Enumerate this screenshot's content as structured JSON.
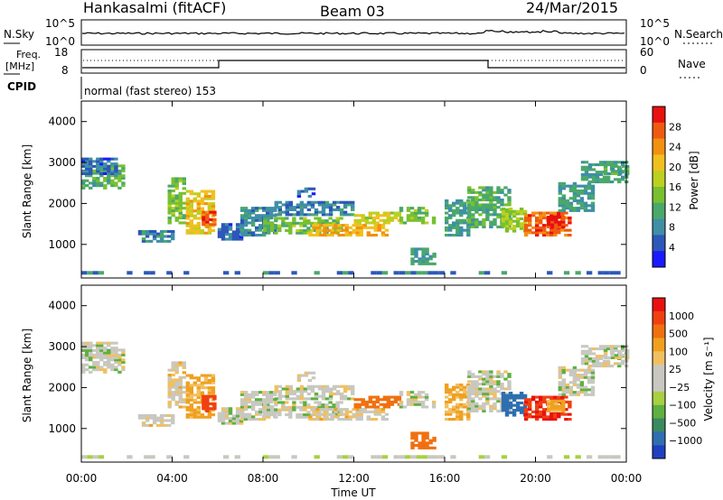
{
  "header": {
    "station": "Hankasalmi (fitACF)",
    "beam": "Beam 03",
    "date": "24/Mar/2015"
  },
  "top_panels": {
    "nsky_label": "N.Sky",
    "nsky_ticks": [
      "10^5",
      "10^0"
    ],
    "nsearch_label": "N.Search",
    "nsearch_ticks": [
      "10^5",
      "10^0"
    ],
    "freq_label_1": "Freq.",
    "freq_label_2": "[MHz]",
    "freq_ticks": [
      "18",
      "8"
    ],
    "nave_label": "Nave",
    "nave_ticks": [
      "60",
      "0"
    ],
    "cpid_label": "CPID",
    "cpid_text": "normal (fast stereo) 153"
  },
  "chart_data": [
    {
      "type": "heatmap",
      "name": "power",
      "ylabel": "Slant Range [km]",
      "ylim": [
        180,
        4500
      ],
      "yticks": [
        "1000",
        "2000",
        "3000",
        "4000"
      ],
      "colorbar_label": "Power [dB]",
      "colorbar_ticks": [
        "4",
        "8",
        "12",
        "16",
        "20",
        "24",
        "28"
      ],
      "colors": [
        "#1a1aff",
        "#2d57b8",
        "#3f8fa6",
        "#4aa86a",
        "#78c030",
        "#bcd020",
        "#f0c020",
        "#f29010",
        "#f05a10",
        "#e81010"
      ]
    },
    {
      "type": "heatmap",
      "name": "velocity",
      "ylabel": "Slant Range [km]",
      "ylim": [
        180,
        4500
      ],
      "yticks": [
        "1000",
        "2000",
        "3000",
        "4000"
      ],
      "colorbar_label": "Velocity [m s⁻¹]",
      "colorbar_ticks": [
        "1000",
        "500",
        "100",
        "25",
        "−25",
        "−100",
        "−500",
        "−1000"
      ],
      "colors": [
        "#2040c0",
        "#2f6fb0",
        "#3a8a60",
        "#5fb040",
        "#a8d040",
        "#c8c8c0",
        "#c8c8c0",
        "#f0c060",
        "#f0a020",
        "#f07010",
        "#f04010",
        "#e81010"
      ]
    }
  ],
  "x_axis": {
    "ticks": [
      "00:00",
      "04:00",
      "08:00",
      "12:00",
      "16:00",
      "20:00",
      "00:00"
    ],
    "label": "Time UT"
  }
}
